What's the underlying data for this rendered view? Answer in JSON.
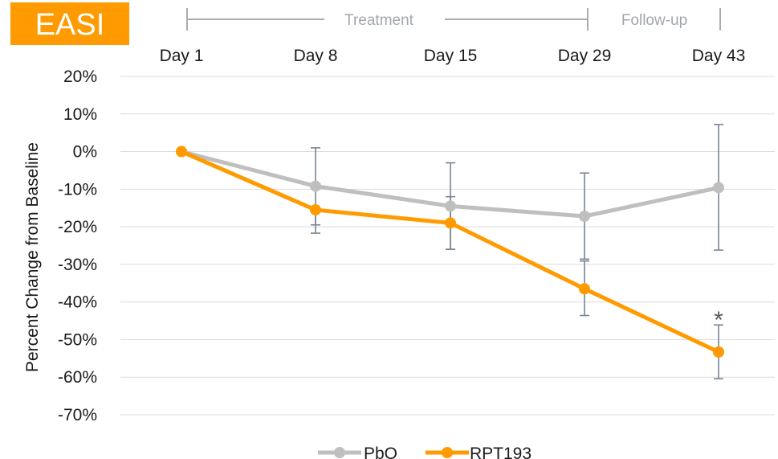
{
  "chart_data": {
    "type": "line",
    "badge": "EASI",
    "phases": [
      {
        "label": "Treatment",
        "from_index": 0,
        "to_index": 3
      },
      {
        "label": "Follow-up",
        "from_index": 3,
        "to_index": 4
      }
    ],
    "categories": [
      "Day 1",
      "Day 8",
      "Day 15",
      "Day 29",
      "Day 43"
    ],
    "ylabel": "Percent Change from Baseline",
    "ylim": [
      -70,
      20
    ],
    "yticks": [
      20,
      10,
      0,
      -10,
      -20,
      -30,
      -40,
      -50,
      -60,
      -70
    ],
    "ytick_labels": [
      "20%",
      "10%",
      "0%",
      "-10%",
      "-20%",
      "-30%",
      "-40%",
      "-50%",
      "-60%",
      "-70%"
    ],
    "grid": true,
    "legend_position": "bottom-center",
    "series": [
      {
        "name": "PbO",
        "color": "#BFBFBF",
        "values": [
          0,
          -9.2,
          -14.5,
          -17.2,
          -9.6
        ],
        "error_low": [
          0,
          -21.7,
          -26.0,
          -28.6,
          -26.2
        ],
        "error_high": [
          0,
          1.0,
          -3.0,
          -5.7,
          7.2
        ]
      },
      {
        "name": "RPT193",
        "color": "#FF9A00",
        "values": [
          0,
          -15.5,
          -19.0,
          -36.5,
          -53.3
        ],
        "error_low": [
          0,
          -19.5,
          -26.0,
          -43.6,
          -60.4
        ],
        "error_high": [
          0,
          -15.5,
          -12.0,
          -29.1,
          -46.1
        ]
      }
    ],
    "annotations": [
      {
        "text": "*",
        "series": "RPT193",
        "index": 4
      }
    ]
  }
}
